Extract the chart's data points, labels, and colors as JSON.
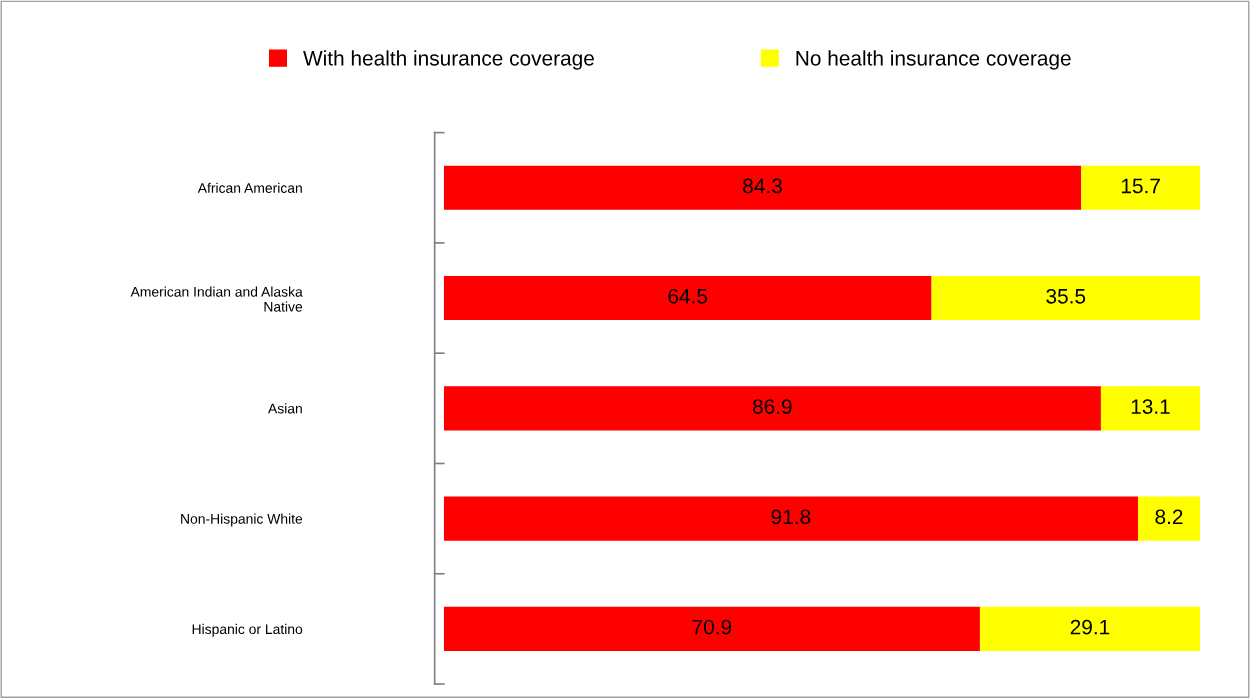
{
  "chart_data": {
    "type": "bar",
    "orientation": "horizontal",
    "stacked": true,
    "categories": [
      "African American",
      "American Indian and Alaska\nNative",
      "Asian",
      "Non-Hispanic White",
      "Hispanic or Latino"
    ],
    "series": [
      {
        "name": "With health insurance coverage",
        "color": "#ff0000",
        "values": [
          84.3,
          64.5,
          86.9,
          91.8,
          70.9
        ]
      },
      {
        "name": "No health insurance coverage",
        "color": "#ffff00",
        "values": [
          15.7,
          35.5,
          13.1,
          8.2,
          29.1
        ]
      }
    ],
    "data_labels": true,
    "legend": "top",
    "grid": false,
    "tick_labels": "y"
  }
}
